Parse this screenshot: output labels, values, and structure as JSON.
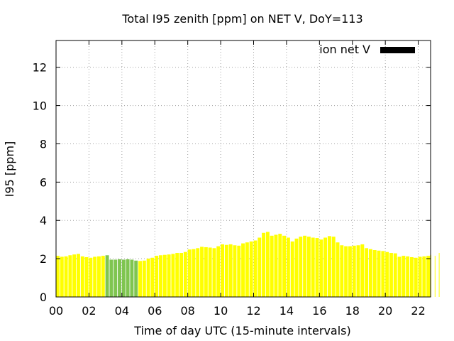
{
  "chart_data": {
    "type": "bar",
    "title": "Total I95 zenith [ppm] on NET V, DoY=113",
    "xlabel": "Time of day UTC (15-minute intervals)",
    "ylabel": "I95 [ppm]",
    "x_tick_labels": [
      "00",
      "02",
      "04",
      "06",
      "08",
      "10",
      "12",
      "14",
      "16",
      "18",
      "20",
      "22"
    ],
    "y_ticks": [
      0,
      2,
      4,
      6,
      8,
      10,
      12
    ],
    "ylim": [
      0,
      13.4
    ],
    "xlim_hours": [
      0,
      22.75
    ],
    "interval_hours": 0.25,
    "grid": true,
    "legend": {
      "label": "ion net V",
      "position": "top-right",
      "color": "#000000"
    },
    "colors": {
      "default": "#ffff00",
      "highlight": "#7fc550"
    },
    "highlight_range_hours": [
      3.0,
      4.75
    ],
    "values": [
      2.15,
      2.1,
      2.12,
      2.18,
      2.22,
      2.25,
      2.12,
      2.08,
      2.05,
      2.1,
      2.12,
      2.15,
      2.18,
      1.95,
      1.95,
      1.97,
      1.95,
      1.97,
      1.95,
      1.9,
      1.88,
      1.9,
      2.0,
      2.05,
      2.15,
      2.18,
      2.2,
      2.22,
      2.25,
      2.3,
      2.3,
      2.35,
      2.48,
      2.5,
      2.55,
      2.62,
      2.6,
      2.58,
      2.55,
      2.65,
      2.75,
      2.72,
      2.75,
      2.7,
      2.68,
      2.8,
      2.85,
      2.9,
      2.95,
      3.1,
      3.35,
      3.4,
      3.2,
      3.25,
      3.3,
      3.2,
      3.1,
      2.9,
      3.05,
      3.15,
      3.2,
      3.15,
      3.1,
      3.08,
      3.0,
      3.1,
      3.18,
      3.15,
      2.85,
      2.7,
      2.65,
      2.65,
      2.68,
      2.7,
      2.75,
      2.55,
      2.5,
      2.45,
      2.42,
      2.4,
      2.35,
      2.3,
      2.28,
      2.1,
      2.15,
      2.12,
      2.08,
      2.05,
      2.1,
      2.12,
      2.15,
      2.2,
      2.15,
      2.3
    ]
  }
}
